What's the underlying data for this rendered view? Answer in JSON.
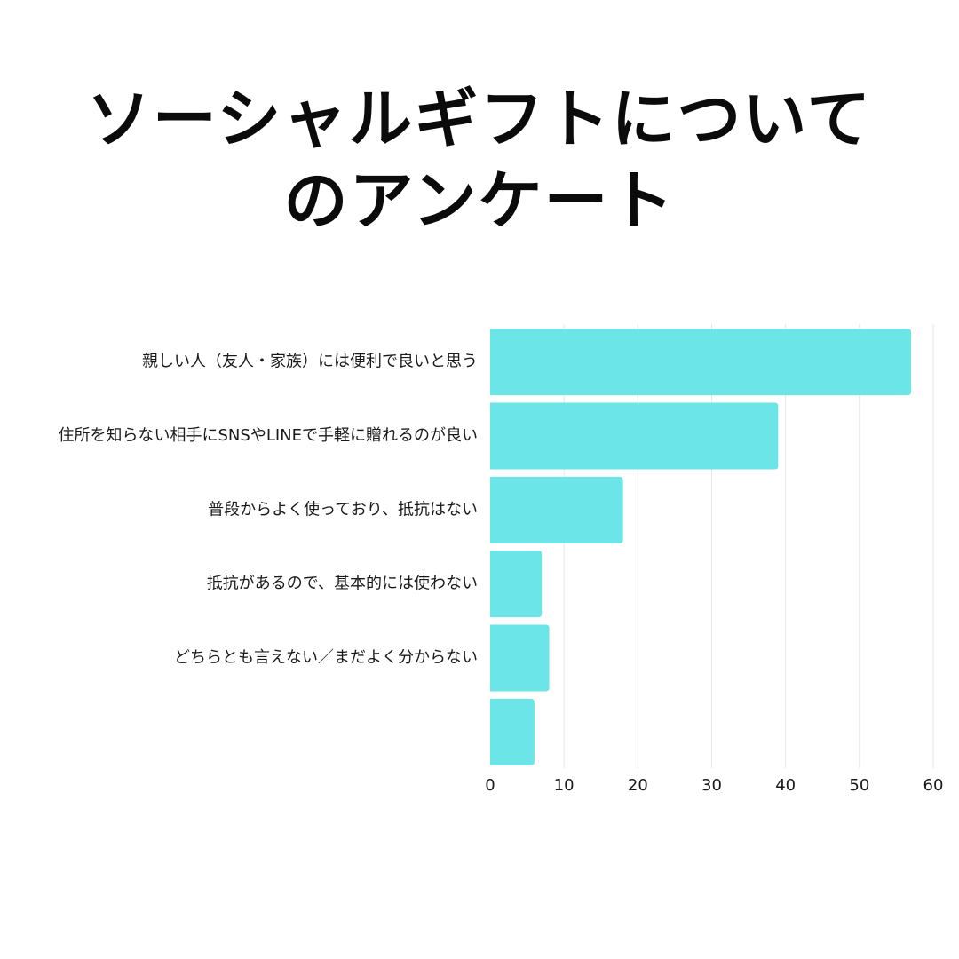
{
  "title": {
    "line1": "ソーシャルギフトについて",
    "line2": "のアンケート"
  },
  "chart_data": {
    "type": "bar",
    "orientation": "horizontal",
    "categories": [
      "親しい人（友人・家族）には便利で良いと思う",
      "住所を知らない相手にSNSやLINEで手軽に贈れるのが良い",
      "普段からよく使っており、抵抗はない",
      "抵抗があるので、基本的には使わない",
      "どちらとも言えない／まだよく分からない",
      ""
    ],
    "values": [
      57,
      39,
      18,
      7,
      8,
      6
    ],
    "xlim": [
      0,
      60
    ],
    "xticks": [
      0,
      10,
      20,
      30,
      40,
      50,
      60
    ],
    "grid": true,
    "color": "#6ce5e8",
    "gridColor": "#e6e6e6"
  }
}
